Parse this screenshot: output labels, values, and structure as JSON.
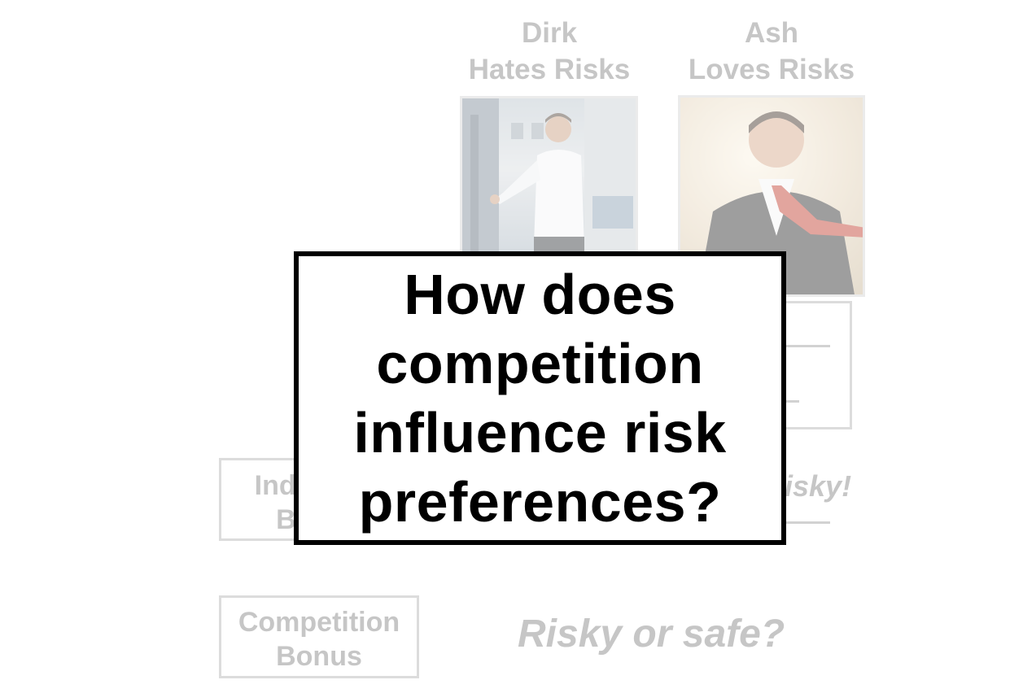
{
  "people": {
    "dirk": {
      "name": "Dirk",
      "caption": "Hates Risks"
    },
    "ash": {
      "name": "Ash",
      "caption": "Loves Risks"
    }
  },
  "bonuses": {
    "individual": {
      "line1": "Individual",
      "line2": "Bonus"
    },
    "competition": {
      "line1": "Competition",
      "line2": "Bonus"
    }
  },
  "labels": {
    "risky_exclaim": "Risky!",
    "risky_or_safe": "Risky or safe?"
  },
  "question": {
    "line1": "How does",
    "line2": "competition",
    "line3": "influence risk",
    "line4": "preferences?"
  },
  "colors": {
    "faded_text": "#c6c6c6",
    "box_border": "#000000"
  }
}
